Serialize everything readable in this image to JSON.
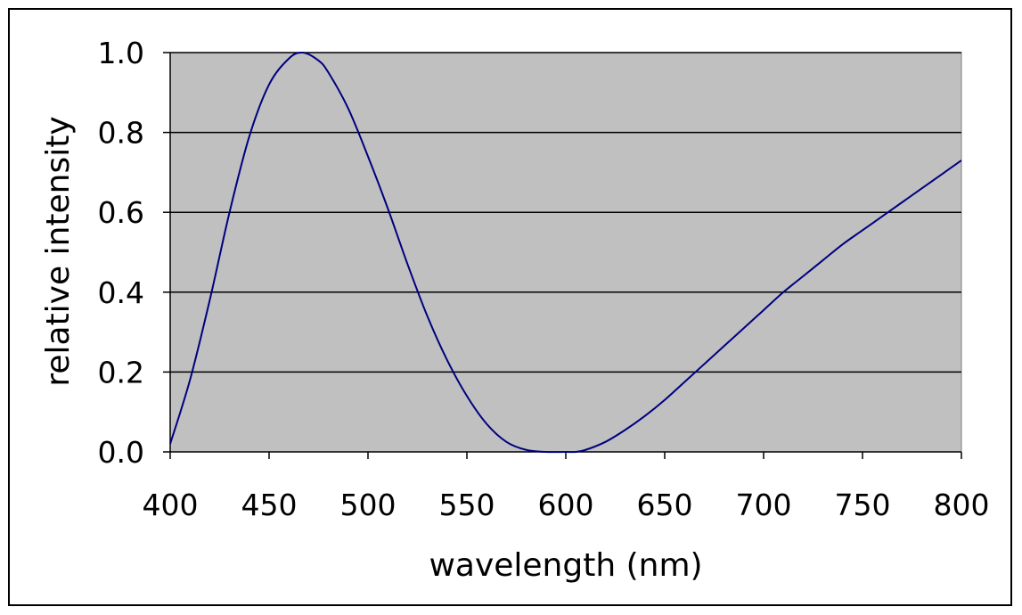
{
  "chart_data": {
    "type": "line",
    "title": "",
    "xlabel": "wavelength (nm)",
    "ylabel": "relative intensity",
    "xlim": [
      400,
      800
    ],
    "ylim": [
      0,
      1.0
    ],
    "x_ticks": [
      400,
      450,
      500,
      550,
      600,
      650,
      700,
      750,
      800
    ],
    "x_tick_labels": [
      "400",
      "450",
      "500",
      "550",
      "600",
      "650",
      "700",
      "750",
      "800"
    ],
    "y_ticks": [
      0,
      0.2,
      0.4,
      0.6,
      0.8,
      1.0
    ],
    "y_tick_labels": [
      "0.0",
      "0.2",
      "0.4",
      "0.6",
      "0.8",
      "1.0"
    ],
    "grid": "horizontal",
    "legend": "none",
    "colors": {
      "plot_background": "#c0c0c0",
      "line": "#000080",
      "gridline": "#000000"
    },
    "series": [
      {
        "x": [
          400,
          410,
          420,
          430,
          440,
          450,
          460,
          467,
          475,
          480,
          490,
          500,
          510,
          520,
          530,
          540,
          550,
          560,
          570,
          580,
          590,
          600,
          605,
          610,
          620,
          630,
          640,
          650,
          660,
          670,
          680,
          690,
          700,
          710,
          720,
          730,
          740,
          750,
          760,
          770,
          780,
          790,
          800
        ],
        "y": [
          0.02,
          0.18,
          0.38,
          0.6,
          0.79,
          0.92,
          0.985,
          1.0,
          0.98,
          0.95,
          0.86,
          0.74,
          0.61,
          0.47,
          0.34,
          0.23,
          0.14,
          0.07,
          0.025,
          0.005,
          0.0,
          0.0,
          0.0,
          0.005,
          0.025,
          0.055,
          0.09,
          0.13,
          0.175,
          0.22,
          0.265,
          0.31,
          0.355,
          0.4,
          0.44,
          0.48,
          0.52,
          0.555,
          0.59,
          0.625,
          0.66,
          0.695,
          0.73
        ]
      }
    ]
  }
}
